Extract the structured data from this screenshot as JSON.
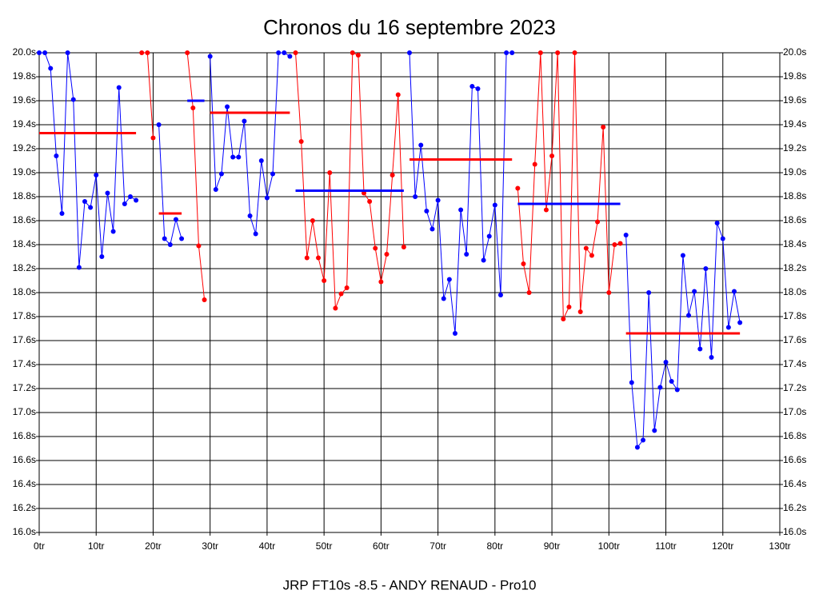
{
  "chart_data": {
    "type": "line",
    "title": "Chronos du 16 septembre 2023",
    "x_label": "JRP FT10s -8.5 - ANDY RENAUD - Pro10",
    "xlim": [
      0,
      130
    ],
    "xticks": [
      {
        "value": 0,
        "label": "0tr"
      },
      {
        "value": 10,
        "label": "10tr"
      },
      {
        "value": 20,
        "label": "20tr"
      },
      {
        "value": 30,
        "label": "30tr"
      },
      {
        "value": 40,
        "label": "40tr"
      },
      {
        "value": 50,
        "label": "50tr"
      },
      {
        "value": 60,
        "label": "60tr"
      },
      {
        "value": 70,
        "label": "70tr"
      },
      {
        "value": 80,
        "label": "80tr"
      },
      {
        "value": 90,
        "label": "90tr"
      },
      {
        "value": 100,
        "label": "100tr"
      },
      {
        "value": 110,
        "label": "110tr"
      },
      {
        "value": 120,
        "label": "120tr"
      },
      {
        "value": 130,
        "label": "130tr"
      }
    ],
    "ylim": [
      16.0,
      20.0
    ],
    "yticks": [
      {
        "value": 16.0,
        "label": "16.0s"
      },
      {
        "value": 16.2,
        "label": "16.2s"
      },
      {
        "value": 16.4,
        "label": "16.4s"
      },
      {
        "value": 16.6,
        "label": "16.6s"
      },
      {
        "value": 16.8,
        "label": "16.8s"
      },
      {
        "value": 17.0,
        "label": "17.0s"
      },
      {
        "value": 17.2,
        "label": "17.2s"
      },
      {
        "value": 17.4,
        "label": "17.4s"
      },
      {
        "value": 17.6,
        "label": "17.6s"
      },
      {
        "value": 17.8,
        "label": "17.8s"
      },
      {
        "value": 18.0,
        "label": "18.0s"
      },
      {
        "value": 18.2,
        "label": "18.2s"
      },
      {
        "value": 18.4,
        "label": "18.4s"
      },
      {
        "value": 18.6,
        "label": "18.6s"
      },
      {
        "value": 18.8,
        "label": "18.8s"
      },
      {
        "value": 19.0,
        "label": "19.0s"
      },
      {
        "value": 19.2,
        "label": "19.2s"
      },
      {
        "value": 19.4,
        "label": "19.4s"
      },
      {
        "value": 19.6,
        "label": "19.6s"
      },
      {
        "value": 19.8,
        "label": "19.8s"
      },
      {
        "value": 20.0,
        "label": "20.0s"
      }
    ],
    "grid": true,
    "series": [
      {
        "color": "#0000ff",
        "x": [
          0,
          1,
          2,
          3,
          4,
          5,
          6,
          7,
          8,
          9,
          10,
          11,
          12,
          13,
          14,
          15,
          16,
          17
        ],
        "values": [
          20.0,
          20.0,
          19.87,
          19.14,
          18.66,
          20.0,
          19.61,
          18.21,
          18.76,
          18.71,
          18.98,
          18.3,
          18.83,
          18.51,
          19.71,
          18.74,
          18.8,
          18.77
        ]
      },
      {
        "color": "#ff0000",
        "x": [
          18,
          19,
          20
        ],
        "values": [
          20.0,
          20.0,
          19.29
        ]
      },
      {
        "color": "#0000ff",
        "x": [
          21,
          22,
          23,
          24,
          25
        ],
        "values": [
          19.4,
          18.45,
          18.4,
          18.61,
          18.45
        ]
      },
      {
        "color": "#ff0000",
        "x": [
          26,
          27,
          28,
          29
        ],
        "values": [
          20.0,
          19.54,
          18.39,
          17.94
        ]
      },
      {
        "color": "#0000ff",
        "x": [
          30,
          31,
          32,
          33,
          34,
          35,
          36,
          37,
          38,
          39,
          40,
          41,
          42,
          43,
          44
        ],
        "values": [
          19.97,
          18.86,
          18.99,
          19.55,
          19.13,
          19.13,
          19.43,
          18.64,
          18.49,
          19.1,
          18.79,
          18.99,
          20.0,
          20.0,
          19.97
        ]
      },
      {
        "color": "#ff0000",
        "x": [
          45,
          46,
          47,
          48,
          49,
          50,
          51,
          52,
          53,
          54,
          55,
          56,
          57,
          58,
          59,
          60,
          61,
          62,
          63,
          64
        ],
        "values": [
          20.0,
          19.26,
          18.29,
          18.6,
          18.29,
          18.1,
          19.0,
          17.87,
          17.99,
          18.04,
          20.0,
          19.98,
          18.83,
          18.76,
          18.37,
          18.09,
          18.32,
          18.98,
          19.65,
          18.38
        ]
      },
      {
        "color": "#0000ff",
        "x": [
          65,
          66,
          67,
          68,
          69,
          70,
          71,
          72,
          73,
          74,
          75,
          76,
          77,
          78,
          79,
          80,
          81,
          82,
          83
        ],
        "values": [
          20.0,
          18.8,
          19.23,
          18.68,
          18.53,
          18.77,
          17.95,
          18.11,
          17.66,
          18.69,
          18.32,
          19.72,
          19.7,
          18.27,
          18.47,
          18.73,
          17.98,
          20.0,
          20.0
        ]
      },
      {
        "color": "#ff0000",
        "x": [
          84,
          85,
          86,
          87,
          88,
          89,
          90,
          91,
          92,
          93,
          94,
          95,
          96,
          97,
          98,
          99,
          100,
          101,
          102
        ],
        "values": [
          18.87,
          18.24,
          18.0,
          19.07,
          20.0,
          18.69,
          19.14,
          20.0,
          17.78,
          17.88,
          20.0,
          17.84,
          18.37,
          18.31,
          18.59,
          19.38,
          18.0,
          18.4,
          18.41
        ]
      },
      {
        "color": "#0000ff",
        "x": [
          103,
          104,
          105,
          106,
          107,
          108,
          109,
          110,
          111,
          112,
          113,
          114,
          115,
          116,
          117,
          118,
          119,
          120,
          121,
          122,
          123
        ],
        "values": [
          18.48,
          17.25,
          16.71,
          16.77,
          18.0,
          16.85,
          17.21,
          17.42,
          17.26,
          17.19,
          18.31,
          17.81,
          18.01,
          17.53,
          18.2,
          17.46,
          18.58,
          18.45,
          17.71,
          18.01,
          17.75
        ]
      }
    ],
    "mean_lines": [
      {
        "color": "#ff0000",
        "x": [
          0,
          17
        ],
        "value": 19.33
      },
      {
        "color": "#ff0000",
        "x": [
          21,
          25
        ],
        "value": 18.66
      },
      {
        "color": "#0000ff",
        "x": [
          26,
          29
        ],
        "value": 19.6
      },
      {
        "color": "#ff0000",
        "x": [
          30,
          44
        ],
        "value": 19.5
      },
      {
        "color": "#0000ff",
        "x": [
          45,
          64
        ],
        "value": 18.85
      },
      {
        "color": "#ff0000",
        "x": [
          65,
          83
        ],
        "value": 19.11
      },
      {
        "color": "#0000ff",
        "x": [
          84,
          102
        ],
        "value": 18.74
      },
      {
        "color": "#ff0000",
        "x": [
          103,
          123
        ],
        "value": 17.66
      }
    ]
  }
}
